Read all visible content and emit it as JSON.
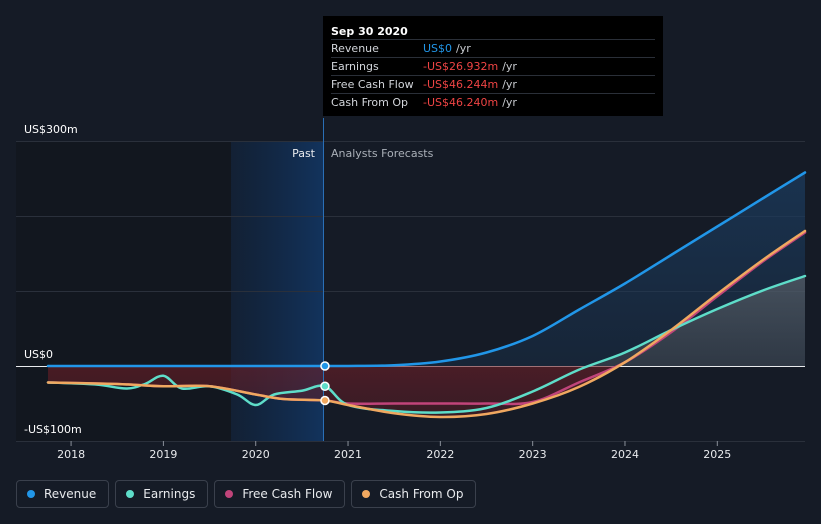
{
  "tooltip": {
    "date": "Sep 30 2020",
    "rows": [
      {
        "label": "Revenue",
        "value": "US$0",
        "unit": "/yr",
        "color": "#2196e8"
      },
      {
        "label": "Earnings",
        "value": "-US$26.932m",
        "unit": "/yr",
        "color": "#ef4444"
      },
      {
        "label": "Free Cash Flow",
        "value": "-US$46.244m",
        "unit": "/yr",
        "color": "#ef4444"
      },
      {
        "label": "Cash From Op",
        "value": "-US$46.240m",
        "unit": "/yr",
        "color": "#ef4444"
      }
    ]
  },
  "chart_data": {
    "type": "line",
    "title": "",
    "xlabel": "",
    "ylabel": "",
    "y_unit": "US$m",
    "y_labels": [
      "US$300m",
      "US$0",
      "-US$100m"
    ],
    "ylim": [
      -100,
      300
    ],
    "xlim": [
      2017.75,
      2025.95
    ],
    "x_ticks": [
      "2018",
      "2019",
      "2020",
      "2021",
      "2022",
      "2023",
      "2024",
      "2025"
    ],
    "divider_x": 2020.75,
    "past_label": "Past",
    "forecast_label": "Analysts Forecasts",
    "series": [
      {
        "name": "Revenue",
        "color": "#2196e8",
        "x": [
          2017.75,
          2020.75,
          2021.0,
          2021.5,
          2022.0,
          2022.5,
          2023.0,
          2023.5,
          2024.0,
          2024.5,
          2025.0,
          2025.5,
          2025.95
        ],
        "y": [
          0,
          0,
          0,
          1,
          6,
          18,
          40,
          75,
          110,
          148,
          186,
          224,
          258
        ]
      },
      {
        "name": "Earnings",
        "color": "#5eddc9",
        "x": [
          2017.75,
          2018.0,
          2018.3,
          2018.6,
          2018.8,
          2019.0,
          2019.2,
          2019.5,
          2019.8,
          2020.0,
          2020.2,
          2020.5,
          2020.75,
          2021.0,
          2021.5,
          2022.0,
          2022.5,
          2023.0,
          2023.5,
          2024.0,
          2024.5,
          2025.0,
          2025.5,
          2025.95
        ],
        "y": [
          -22,
          -23,
          -25,
          -30,
          -24,
          -13,
          -30,
          -27,
          -38,
          -52,
          -38,
          -33,
          -27,
          -52,
          -60,
          -62,
          -56,
          -34,
          -5,
          18,
          48,
          76,
          101,
          120
        ]
      },
      {
        "name": "Free Cash Flow",
        "color": "#c0447a",
        "x": [
          2017.75,
          2018.5,
          2019.0,
          2019.5,
          2020.0,
          2020.3,
          2020.75,
          2021.0,
          2021.5,
          2022.0,
          2022.5,
          2023.0,
          2023.5,
          2024.0,
          2024.5,
          2025.0,
          2025.5,
          2025.95
        ],
        "y": [
          -22,
          -24,
          -27,
          -27,
          -38,
          -44,
          -46,
          -50,
          -50,
          -50,
          -50,
          -48,
          -22,
          5,
          45,
          93,
          140,
          178
        ]
      },
      {
        "name": "Cash From Op",
        "color": "#f0a860",
        "x": [
          2017.75,
          2018.5,
          2019.0,
          2019.5,
          2020.0,
          2020.3,
          2020.75,
          2021.0,
          2021.5,
          2022.0,
          2022.5,
          2023.0,
          2023.5,
          2024.0,
          2024.5,
          2025.0,
          2025.5,
          2025.95
        ],
        "y": [
          -22,
          -24,
          -27,
          -27,
          -38,
          -44,
          -46,
          -52,
          -63,
          -68,
          -64,
          -50,
          -28,
          5,
          48,
          96,
          142,
          180
        ]
      }
    ]
  },
  "legend": [
    {
      "label": "Revenue",
      "color": "#2196e8"
    },
    {
      "label": "Earnings",
      "color": "#5eddc9"
    },
    {
      "label": "Free Cash Flow",
      "color": "#c0447a"
    },
    {
      "label": "Cash From Op",
      "color": "#f0a860"
    }
  ]
}
